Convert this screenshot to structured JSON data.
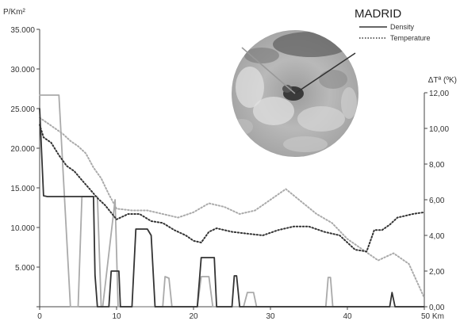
{
  "chart_data": {
    "type": "line",
    "title": "MADRID",
    "xlabel": "Km",
    "ylabel_left": "P/Km²",
    "ylabel_right": "ΔTª (ºK)",
    "xlim": [
      0,
      50
    ],
    "ylim_left": [
      0,
      35000
    ],
    "ylim_right": [
      0,
      12
    ],
    "x_ticks": [
      "0",
      "10",
      "20",
      "30",
      "40",
      "50 Km"
    ],
    "x_tick_values": [
      0,
      10,
      20,
      30,
      40,
      50
    ],
    "y_left_ticks": [
      "",
      "5.000",
      "10.000",
      "15.000",
      "20.000",
      "25.000",
      "30.000",
      "35.000"
    ],
    "y_left_tick_values": [
      0,
      5000,
      10000,
      15000,
      20000,
      25000,
      30000,
      35000
    ],
    "y_right_ticks": [
      "0,00",
      "2,00",
      "4,00",
      "6,00",
      "8,00",
      "10,00",
      "12,00"
    ],
    "y_right_tick_values": [
      0,
      2,
      4,
      6,
      8,
      10,
      12
    ],
    "legend": [
      "Density",
      "Temperature"
    ],
    "legend_position": "top-right",
    "grid": false,
    "colors": {
      "dark": "#333333",
      "light": "#aaaaaa"
    },
    "series": [
      {
        "name": "Density",
        "axis": "left",
        "style": "solid-dark",
        "x": [
          0,
          0.5,
          1,
          7,
          7.2,
          7.5,
          9,
          9.3,
          10.3,
          10.5,
          12,
          12.5,
          14,
          14.5,
          15,
          20.5,
          21,
          22.7,
          23,
          25,
          25.3,
          25.6,
          26,
          45.5,
          45.8,
          46.2,
          50
        ],
        "y": [
          25000,
          14000,
          13900,
          13900,
          4000,
          0,
          0,
          4500,
          4500,
          0,
          0,
          9800,
          9800,
          9000,
          0,
          0,
          6200,
          6200,
          0,
          0,
          3900,
          3900,
          0,
          0,
          1800,
          0,
          0
        ]
      },
      {
        "name": "Density (light)",
        "axis": "left",
        "style": "solid-light",
        "x": [
          0,
          0.3,
          2.5,
          4,
          4.3,
          5,
          5.5,
          6.5,
          7.2,
          7.5,
          8,
          8.2,
          9.8,
          10.2,
          10.6,
          16,
          16.3,
          16.8,
          17.2,
          20.5,
          21,
          22,
          22.5,
          26.5,
          27,
          27.8,
          28.2,
          37.2,
          37.5,
          37.8,
          38.1,
          50
        ],
        "y": [
          26700,
          26700,
          26700,
          0,
          0,
          0,
          13900,
          13900,
          13900,
          13900,
          0,
          0,
          13500,
          0,
          0,
          0,
          3800,
          3600,
          0,
          0,
          3800,
          3800,
          0,
          0,
          1800,
          1800,
          0,
          0,
          3700,
          3700,
          0,
          0
        ]
      },
      {
        "name": "Temperature",
        "axis": "right",
        "style": "dotted-dark",
        "x": [
          0,
          0.5,
          1.5,
          2.5,
          3.5,
          4.5,
          5.5,
          6.5,
          7.5,
          8.5,
          10,
          11.5,
          13,
          14.5,
          16,
          17.5,
          19,
          20,
          21,
          22,
          23,
          25,
          27,
          29,
          31,
          33,
          35,
          37,
          39,
          41,
          42.5,
          43.5,
          44.5,
          45.5,
          46.5,
          47.5,
          48.5,
          50
        ],
        "y": [
          10.2,
          9.5,
          9.2,
          8.5,
          7.9,
          7.6,
          7.1,
          6.6,
          6.1,
          5.7,
          4.9,
          5.2,
          5.2,
          4.8,
          4.7,
          4.3,
          4.0,
          3.7,
          3.6,
          4.2,
          4.4,
          4.2,
          4.1,
          4.0,
          4.3,
          4.5,
          4.5,
          4.2,
          4.0,
          3.2,
          3.1,
          4.3,
          4.3,
          4.6,
          5.0,
          5.1,
          5.2,
          5.3
        ]
      },
      {
        "name": "Temperature (light)",
        "axis": "right",
        "style": "dotted-light",
        "x": [
          0,
          1,
          2,
          3,
          4,
          5,
          6,
          7,
          8,
          9,
          10,
          12,
          14,
          16,
          18,
          20,
          22,
          24,
          26,
          28,
          30,
          32,
          34,
          36,
          38,
          40,
          42,
          44,
          46,
          48,
          50
        ],
        "y": [
          10.6,
          10.3,
          10.0,
          9.7,
          9.3,
          9.0,
          8.6,
          7.8,
          7.2,
          6.3,
          5.5,
          5.4,
          5.4,
          5.2,
          5.0,
          5.3,
          5.8,
          5.6,
          5.2,
          5.4,
          6.0,
          6.6,
          5.9,
          5.2,
          4.7,
          3.8,
          3.2,
          2.6,
          3.0,
          2.4,
          0.5
        ]
      }
    ]
  }
}
